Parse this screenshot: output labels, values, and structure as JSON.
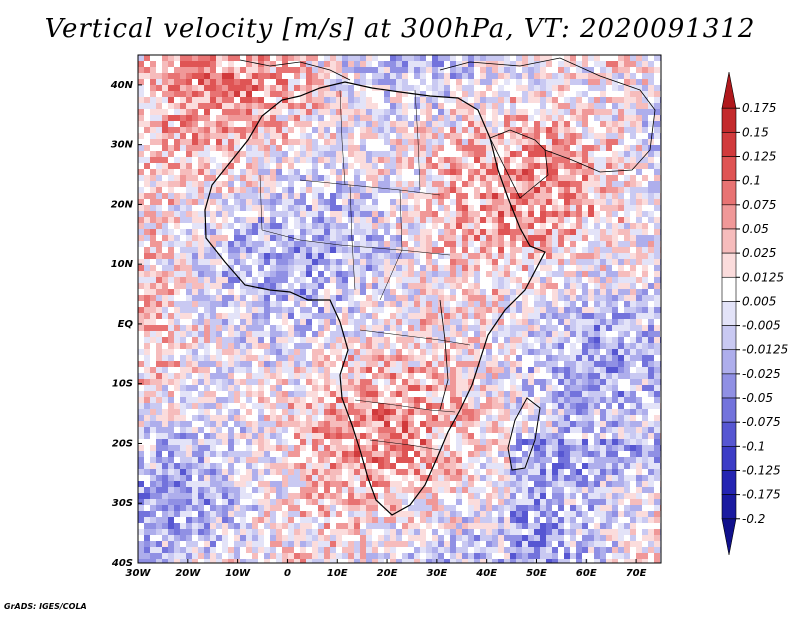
{
  "title": "Vertical velocity [m/s] at 300hPa, VT: 2020091312",
  "credit": "GrADS: IGES/COLA",
  "map": {
    "region": "Africa",
    "lon_range": [
      -30,
      75
    ],
    "lat_range": [
      -40,
      45
    ],
    "lat_ticks": [
      "40N",
      "30N",
      "20N",
      "10N",
      "EQ",
      "10S",
      "20S",
      "30S",
      "40S"
    ],
    "lon_ticks": [
      "30W",
      "20W",
      "10W",
      "0",
      "10E",
      "20E",
      "30E",
      "40E",
      "50E",
      "60E",
      "70E"
    ]
  },
  "colorbar": {
    "labels": [
      "0.175",
      "0.15",
      "0.125",
      "0.1",
      "0.075",
      "0.05",
      "0.025",
      "0.0125",
      "0.005",
      "-0.005",
      "-0.0125",
      "-0.025",
      "-0.05",
      "-0.075",
      "-0.1",
      "-0.125",
      "-0.175",
      "-0.2"
    ],
    "colors": [
      "#b0181c",
      "#c32a2c",
      "#d13a3c",
      "#df5454",
      "#e87373",
      "#f09898",
      "#f6bcbc",
      "#fbdcdc",
      "#ffffff",
      "#e3e3f8",
      "#c9c9f2",
      "#aeaeec",
      "#9090e4",
      "#7373dc",
      "#5656d2",
      "#3c3cc6",
      "#2424b2",
      "#1a1aa0",
      "#10108c"
    ]
  }
}
